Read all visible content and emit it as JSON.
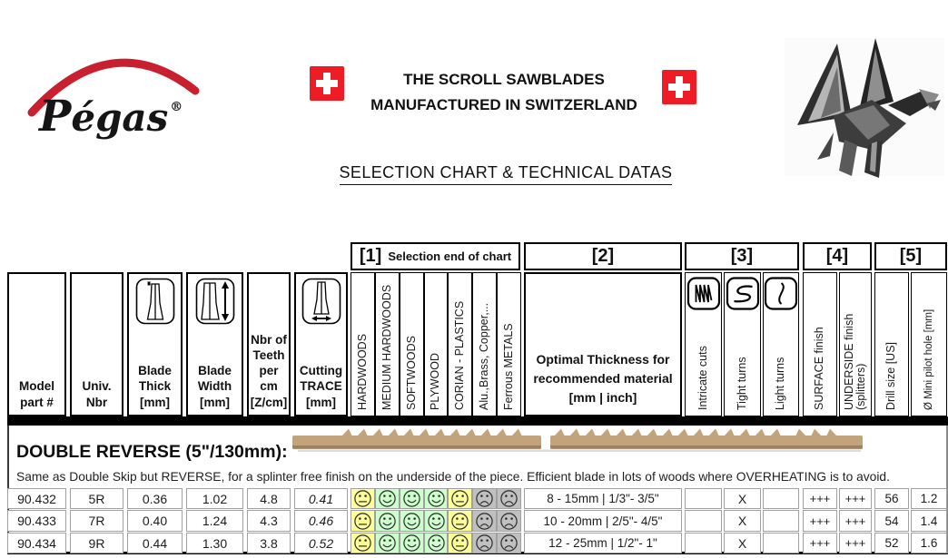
{
  "header": {
    "brand": "Pégas",
    "registered": "®",
    "title_line1": "THE SCROLL SAWBLADES",
    "title_line2": "MANUFACTURED IN SWITZERLAND",
    "subtitle": "SELECTION CHART & TECHNICAL DATAS"
  },
  "colors": {
    "flag_red": "#ee1c25",
    "logo_red": "#c8202f",
    "rating_yellow": "#ffff99",
    "rating_green": "#ccffcc",
    "rating_gray": "#c0c0c0",
    "blade_tan": "#c2a47c"
  },
  "table": {
    "groups": [
      {
        "num": "[1]",
        "label": "Selection end of chart"
      },
      {
        "num": "[2]",
        "label": ""
      },
      {
        "num": "[3]",
        "label": ""
      },
      {
        "num": "[4]",
        "label": ""
      },
      {
        "num": "[5]",
        "label": ""
      }
    ],
    "spec_headers": [
      {
        "lines": [
          "Model",
          "part #"
        ],
        "icon": ""
      },
      {
        "lines": [
          "Univ.",
          "Nbr"
        ],
        "icon": ""
      },
      {
        "lines": [
          "Blade",
          "Thick",
          "[mm]"
        ],
        "icon": "blade-thickness-icon"
      },
      {
        "lines": [
          "Blade",
          "Width",
          "[mm]"
        ],
        "icon": "blade-width-icon"
      },
      {
        "lines": [
          "Nbr of",
          "Teeth",
          "per cm",
          "[Z/cm]"
        ],
        "icon": ""
      },
      {
        "lines": [
          "Cutting",
          "TRACE",
          "[mm]"
        ],
        "icon": "cutting-trace-icon"
      }
    ],
    "materials": [
      "HARDWOODS",
      "MEDIUM HARDWOODS",
      "SOFTWOODS",
      "PLYWOOD",
      "CORIAN - PLASTICS",
      "Alu.,Brass, Copper,...",
      "Ferrous METALS"
    ],
    "thickness_header_lines": [
      "Optimal Thickness for",
      "recommended material",
      "[mm | inch]"
    ],
    "turns": [
      {
        "label": "Intricate cuts",
        "icon": "intricate-cuts-icon"
      },
      {
        "label": "Tight turns",
        "icon": "tight-turns-icon"
      },
      {
        "label": "Light turns",
        "icon": "light-turns-icon"
      }
    ],
    "finishes": [
      "SURFACE finish",
      "UNDERSIDE finish\n(splitters)"
    ],
    "sizes": [
      "Drill size [US]",
      "Ø Mini pilot hole [mm]"
    ],
    "section": {
      "title": "DOUBLE REVERSE (5\"/130mm):",
      "description": "Same as Double Skip but REVERSE, for a splinter free finish on the underside of the piece. Efficient blade in lots of woods where OVERHEATING is to avoid."
    },
    "rows": [
      {
        "model": "90.432",
        "univ": "5R",
        "thick": "0.36",
        "width": "1.02",
        "teeth": "4.8",
        "trace": "0.41",
        "ratings": [
          {
            "face": "neutral",
            "bg": "#ffff99"
          },
          {
            "face": "smile",
            "bg": "#ccffcc"
          },
          {
            "face": "smile",
            "bg": "#ccffcc"
          },
          {
            "face": "smile",
            "bg": "#ccffcc"
          },
          {
            "face": "neutral",
            "bg": "#ffff99"
          },
          {
            "face": "frown",
            "bg": "#c0c0c0"
          },
          {
            "face": "frown",
            "bg": "#c0c0c0"
          }
        ],
        "thickness": "8 - 15mm | 1/3\"- 3/5\"",
        "turns": [
          "",
          "X",
          ""
        ],
        "surface": "+++",
        "underside": "+++",
        "drill": "56",
        "pilot": "1.2"
      },
      {
        "model": "90.433",
        "univ": "7R",
        "thick": "0.40",
        "width": "1.24",
        "teeth": "4.3",
        "trace": "0.46",
        "ratings": [
          {
            "face": "neutral",
            "bg": "#ffff99"
          },
          {
            "face": "smile",
            "bg": "#ccffcc"
          },
          {
            "face": "smile",
            "bg": "#ccffcc"
          },
          {
            "face": "smile",
            "bg": "#ccffcc"
          },
          {
            "face": "neutral",
            "bg": "#ffff99"
          },
          {
            "face": "frown",
            "bg": "#c0c0c0"
          },
          {
            "face": "frown",
            "bg": "#c0c0c0"
          }
        ],
        "thickness": "10 - 20mm | 2/5\"- 4/5\"",
        "turns": [
          "",
          "X",
          ""
        ],
        "surface": "+++",
        "underside": "+++",
        "drill": "54",
        "pilot": "1.4"
      },
      {
        "model": "90.434",
        "univ": "9R",
        "thick": "0.44",
        "width": "1.30",
        "teeth": "3.8",
        "trace": "0.52",
        "ratings": [
          {
            "face": "neutral",
            "bg": "#ffff99"
          },
          {
            "face": "smile",
            "bg": "#ccffcc"
          },
          {
            "face": "smile",
            "bg": "#ccffcc"
          },
          {
            "face": "smile",
            "bg": "#ccffcc"
          },
          {
            "face": "neutral",
            "bg": "#ffff99"
          },
          {
            "face": "frown",
            "bg": "#c0c0c0"
          },
          {
            "face": "frown",
            "bg": "#c0c0c0"
          }
        ],
        "thickness": "12 - 25mm | 1/2\"- 1\"",
        "turns": [
          "",
          "X",
          ""
        ],
        "surface": "+++",
        "underside": "+++",
        "drill": "52",
        "pilot": "1.6"
      }
    ]
  }
}
